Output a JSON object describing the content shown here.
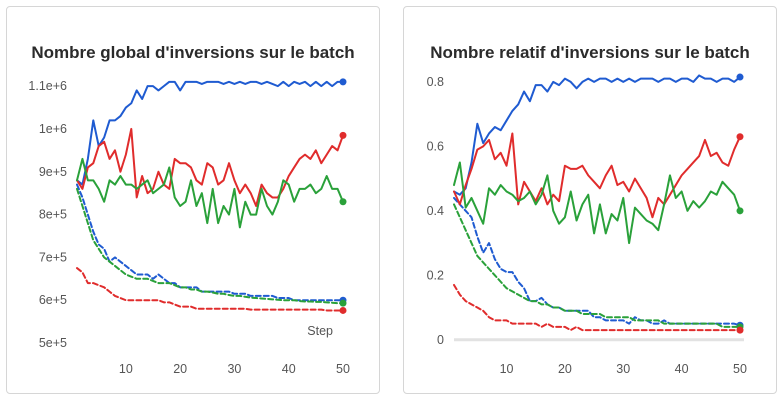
{
  "chart_data": [
    {
      "type": "line",
      "title": "Nombre global d'inversions sur le batch",
      "xlabel": "Step",
      "ylabel": "",
      "xlim": [
        1,
        50
      ],
      "ylim": [
        500000,
        1140000
      ],
      "xticks": [
        10,
        20,
        30,
        40,
        50
      ],
      "yticks": [
        500000,
        600000,
        700000,
        800000,
        900000,
        1000000,
        1100000
      ],
      "yticklabels": [
        "5e+5",
        "6e+5",
        "7e+5",
        "8e+5",
        "9e+5",
        "1e+6",
        "1.1e+6"
      ],
      "grid": false,
      "legend": "none",
      "series": [
        {
          "color": "#1f5bd1",
          "style": "solid",
          "values": [
            880000,
            870000,
            930000,
            1020000,
            960000,
            980000,
            1020000,
            1020000,
            1030000,
            1050000,
            1060000,
            1090000,
            1070000,
            1100000,
            1100000,
            1090000,
            1100000,
            1110000,
            1110000,
            1090000,
            1110000,
            1110000,
            1110000,
            1105000,
            1110000,
            1110000,
            1110000,
            1105000,
            1110000,
            1105000,
            1110000,
            1105000,
            1110000,
            1110000,
            1105000,
            1110000,
            1105000,
            1100000,
            1110000,
            1100000,
            1110000,
            1105000,
            1110000,
            1100000,
            1110000,
            1100000,
            1110000,
            1100000,
            1110000,
            1110000
          ]
        },
        {
          "color": "#e02c2c",
          "style": "solid",
          "values": [
            880000,
            860000,
            910000,
            920000,
            960000,
            970000,
            930000,
            950000,
            900000,
            940000,
            1000000,
            840000,
            890000,
            850000,
            860000,
            900000,
            870000,
            860000,
            930000,
            920000,
            920000,
            910000,
            880000,
            870000,
            920000,
            910000,
            870000,
            880000,
            920000,
            880000,
            850000,
            870000,
            850000,
            820000,
            870000,
            850000,
            840000,
            840000,
            860000,
            890000,
            910000,
            930000,
            940000,
            930000,
            950000,
            920000,
            940000,
            960000,
            950000,
            985000
          ]
        },
        {
          "color": "#2aa13a",
          "style": "solid",
          "values": [
            880000,
            930000,
            880000,
            880000,
            860000,
            830000,
            880000,
            870000,
            890000,
            870000,
            870000,
            860000,
            870000,
            880000,
            850000,
            860000,
            870000,
            910000,
            840000,
            820000,
            830000,
            880000,
            820000,
            850000,
            780000,
            860000,
            780000,
            820000,
            800000,
            860000,
            770000,
            830000,
            800000,
            800000,
            860000,
            820000,
            800000,
            830000,
            880000,
            870000,
            830000,
            860000,
            860000,
            870000,
            850000,
            860000,
            890000,
            860000,
            860000,
            830000
          ]
        },
        {
          "color": "#1f5bd1",
          "style": "dashed",
          "values": [
            870000,
            840000,
            800000,
            760000,
            730000,
            720000,
            690000,
            700000,
            690000,
            680000,
            670000,
            660000,
            660000,
            660000,
            650000,
            660000,
            650000,
            640000,
            640000,
            630000,
            630000,
            630000,
            630000,
            620000,
            620000,
            620000,
            620000,
            620000,
            620000,
            615000,
            615000,
            615000,
            610000,
            610000,
            610000,
            610000,
            610000,
            605000,
            605000,
            605000,
            600000,
            600000,
            600000,
            600000,
            600000,
            600000,
            600000,
            600000,
            600000,
            600000
          ]
        },
        {
          "color": "#2aa13a",
          "style": "dashed",
          "values": [
            860000,
            820000,
            780000,
            740000,
            720000,
            700000,
            690000,
            680000,
            670000,
            660000,
            655000,
            650000,
            650000,
            650000,
            645000,
            640000,
            640000,
            640000,
            635000,
            630000,
            630000,
            625000,
            625000,
            620000,
            620000,
            618000,
            615000,
            615000,
            612000,
            610000,
            610000,
            608000,
            606000,
            605000,
            604000,
            603000,
            602000,
            601000,
            600000,
            600000,
            600000,
            598000,
            597000,
            597000,
            596000,
            596000,
            595000,
            594000,
            593000,
            593000
          ]
        },
        {
          "color": "#e02c2c",
          "style": "dashed",
          "values": [
            675000,
            665000,
            640000,
            640000,
            635000,
            630000,
            620000,
            610000,
            605000,
            600000,
            600000,
            600000,
            600000,
            600000,
            600000,
            600000,
            595000,
            595000,
            590000,
            585000,
            585000,
            585000,
            580000,
            580000,
            580000,
            580000,
            580000,
            580000,
            580000,
            580000,
            580000,
            580000,
            578000,
            578000,
            578000,
            578000,
            578000,
            578000,
            578000,
            578000,
            578000,
            578000,
            578000,
            578000,
            578000,
            578000,
            576000,
            576000,
            576000,
            576000
          ]
        }
      ]
    },
    {
      "type": "line",
      "title": "Nombre relatif d'inversions sur le batch",
      "xlabel": "",
      "ylabel": "",
      "xlim": [
        1,
        50
      ],
      "ylim": [
        -0.01,
        0.84
      ],
      "xticks": [
        10,
        20,
        30,
        40,
        50
      ],
      "yticks": [
        0,
        0.2,
        0.4,
        0.6,
        0.8
      ],
      "yticklabels": [
        "0",
        "0.2",
        "0.4",
        "0.6",
        "0.8"
      ],
      "grid": false,
      "legend": "none",
      "series": [
        {
          "color": "#1f5bd1",
          "style": "solid",
          "values": [
            0.46,
            0.45,
            0.47,
            0.55,
            0.67,
            0.61,
            0.64,
            0.66,
            0.65,
            0.68,
            0.71,
            0.73,
            0.77,
            0.74,
            0.79,
            0.79,
            0.77,
            0.8,
            0.79,
            0.81,
            0.8,
            0.78,
            0.8,
            0.81,
            0.8,
            0.81,
            0.81,
            0.8,
            0.81,
            0.8,
            0.81,
            0.8,
            0.81,
            0.81,
            0.81,
            0.8,
            0.81,
            0.81,
            0.8,
            0.81,
            0.81,
            0.8,
            0.82,
            0.81,
            0.81,
            0.8,
            0.81,
            0.81,
            0.8,
            0.815
          ]
        },
        {
          "color": "#e02c2c",
          "style": "solid",
          "values": [
            0.46,
            0.42,
            0.48,
            0.53,
            0.59,
            0.6,
            0.62,
            0.56,
            0.58,
            0.54,
            0.64,
            0.42,
            0.49,
            0.46,
            0.43,
            0.47,
            0.42,
            0.45,
            0.43,
            0.54,
            0.53,
            0.53,
            0.54,
            0.51,
            0.49,
            0.47,
            0.51,
            0.54,
            0.48,
            0.49,
            0.46,
            0.5,
            0.47,
            0.44,
            0.38,
            0.44,
            0.42,
            0.45,
            0.48,
            0.51,
            0.53,
            0.55,
            0.57,
            0.62,
            0.57,
            0.58,
            0.55,
            0.54,
            0.59,
            0.63
          ]
        },
        {
          "color": "#2aa13a",
          "style": "solid",
          "values": [
            0.48,
            0.55,
            0.41,
            0.44,
            0.4,
            0.36,
            0.47,
            0.45,
            0.48,
            0.46,
            0.45,
            0.43,
            0.44,
            0.46,
            0.42,
            0.45,
            0.51,
            0.4,
            0.36,
            0.38,
            0.46,
            0.37,
            0.42,
            0.45,
            0.33,
            0.42,
            0.33,
            0.39,
            0.37,
            0.44,
            0.3,
            0.41,
            0.39,
            0.37,
            0.36,
            0.34,
            0.42,
            0.51,
            0.44,
            0.46,
            0.4,
            0.43,
            0.41,
            0.43,
            0.46,
            0.45,
            0.49,
            0.47,
            0.45,
            0.4
          ]
        },
        {
          "color": "#1f5bd1",
          "style": "dashed",
          "values": [
            0.44,
            0.42,
            0.4,
            0.38,
            0.32,
            0.27,
            0.3,
            0.25,
            0.22,
            0.21,
            0.21,
            0.18,
            0.16,
            0.12,
            0.12,
            0.13,
            0.11,
            0.1,
            0.1,
            0.09,
            0.09,
            0.09,
            0.09,
            0.09,
            0.07,
            0.07,
            0.06,
            0.06,
            0.06,
            0.06,
            0.05,
            0.07,
            0.06,
            0.06,
            0.05,
            0.05,
            0.06,
            0.05,
            0.05,
            0.05,
            0.05,
            0.05,
            0.05,
            0.05,
            0.05,
            0.05,
            0.05,
            0.05,
            0.05,
            0.045
          ]
        },
        {
          "color": "#2aa13a",
          "style": "dashed",
          "values": [
            0.42,
            0.38,
            0.34,
            0.3,
            0.26,
            0.24,
            0.22,
            0.2,
            0.18,
            0.16,
            0.15,
            0.14,
            0.13,
            0.12,
            0.12,
            0.11,
            0.11,
            0.1,
            0.1,
            0.09,
            0.09,
            0.09,
            0.08,
            0.08,
            0.08,
            0.08,
            0.07,
            0.07,
            0.07,
            0.07,
            0.07,
            0.06,
            0.06,
            0.06,
            0.06,
            0.06,
            0.05,
            0.05,
            0.05,
            0.05,
            0.05,
            0.05,
            0.05,
            0.05,
            0.05,
            0.05,
            0.04,
            0.04,
            0.04,
            0.04
          ]
        },
        {
          "color": "#e02c2c",
          "style": "dashed",
          "values": [
            0.17,
            0.14,
            0.12,
            0.11,
            0.1,
            0.09,
            0.07,
            0.06,
            0.06,
            0.06,
            0.05,
            0.05,
            0.05,
            0.05,
            0.05,
            0.04,
            0.05,
            0.04,
            0.04,
            0.04,
            0.03,
            0.04,
            0.03,
            0.03,
            0.03,
            0.03,
            0.03,
            0.03,
            0.03,
            0.03,
            0.03,
            0.03,
            0.03,
            0.03,
            0.03,
            0.03,
            0.03,
            0.03,
            0.03,
            0.03,
            0.03,
            0.03,
            0.03,
            0.03,
            0.03,
            0.03,
            0.03,
            0.03,
            0.03,
            0.03
          ]
        }
      ]
    }
  ]
}
